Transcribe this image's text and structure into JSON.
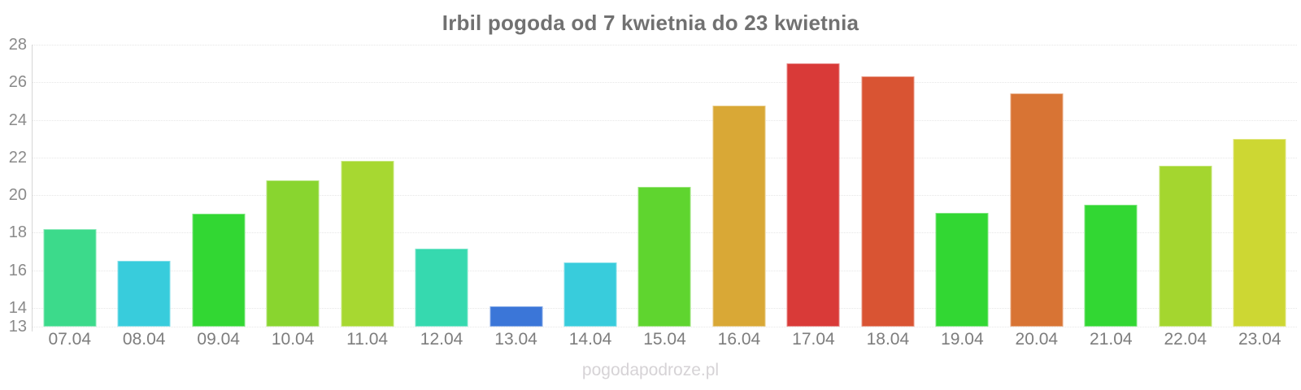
{
  "title": "Irbil pogoda od 7 kwietnia do 23 kwietnia",
  "watermark": "pogodapodroze.pl",
  "chart_data": {
    "type": "bar",
    "title": "Irbil pogoda od 7 kwietnia do 23 kwietnia",
    "categories": [
      "07.04",
      "08.04",
      "09.04",
      "10.04",
      "11.04",
      "12.04",
      "13.04",
      "14.04",
      "15.04",
      "16.04",
      "17.04",
      "18.04",
      "19.04",
      "20.04",
      "21.04",
      "22.04",
      "23.04"
    ],
    "values": [
      18.2,
      16.5,
      19.0,
      20.8,
      21.8,
      17.15,
      14.1,
      16.4,
      20.45,
      24.75,
      27.0,
      26.3,
      19.05,
      25.4,
      19.5,
      21.55,
      23.0
    ],
    "bar_colors": [
      "#3cda8b",
      "#38ccdc",
      "#32d733",
      "#89d52f",
      "#a7d831",
      "#36d9af",
      "#3b76d8",
      "#38ccdc",
      "#5fd52f",
      "#d9a836",
      "#d93a38",
      "#d95433",
      "#32d733",
      "#d87434",
      "#32d733",
      "#a4d62f",
      "#cdd733"
    ],
    "xlabel": "",
    "ylabel": "",
    "ylim": [
      13,
      28
    ],
    "yticks": [
      28,
      26,
      24,
      22,
      20,
      18,
      16,
      14,
      13
    ],
    "grid": "horizontal-dotted",
    "legend": "none",
    "axis_color": "#d6d6d6",
    "tick_label_color": "#8a8a8a",
    "title_color": "#717171"
  }
}
